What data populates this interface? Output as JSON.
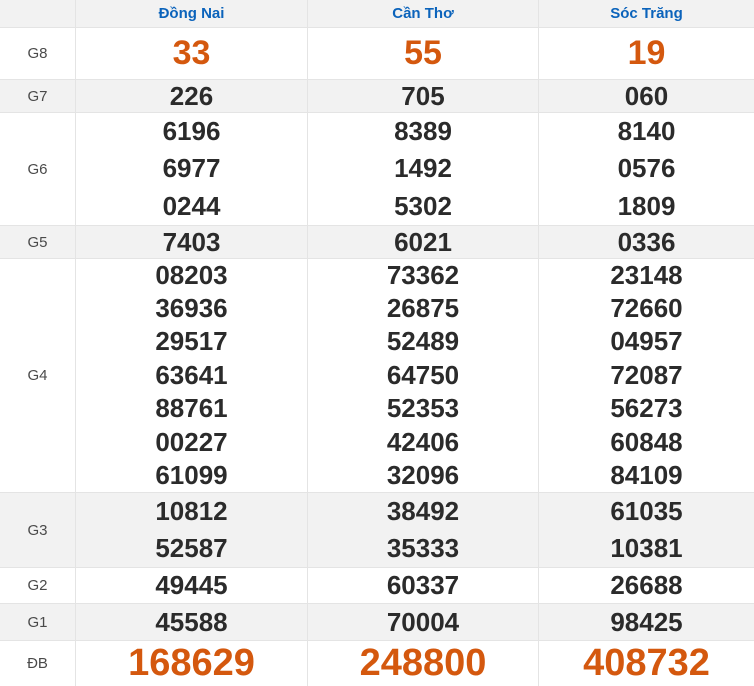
{
  "lottery": {
    "provinces": [
      "Đồng Nai",
      "Cần Thơ",
      "Sóc Trăng"
    ],
    "rows": [
      {
        "label": "G8",
        "values": [
          "33",
          "55",
          "19"
        ]
      },
      {
        "label": "G7",
        "values": [
          "226",
          "705",
          "060"
        ]
      },
      {
        "label": "G6",
        "values": [
          "6196\n6977\n0244",
          "8389\n1492\n5302",
          "8140\n0576\n1809"
        ]
      },
      {
        "label": "G5",
        "values": [
          "7403",
          "6021",
          "0336"
        ]
      },
      {
        "label": "G4",
        "values": [
          "08203\n36936\n29517\n63641\n88761\n00227\n61099",
          "73362\n26875\n52489\n64750\n52353\n42406\n32096",
          "23148\n72660\n04957\n72087\n56273\n60848\n84109"
        ]
      },
      {
        "label": "G3",
        "values": [
          "10812\n52587",
          "38492\n35333",
          "61035\n10381"
        ]
      },
      {
        "label": "G2",
        "values": [
          "49445",
          "60337",
          "26688"
        ]
      },
      {
        "label": "G1",
        "values": [
          "45588",
          "70004",
          "98425"
        ]
      },
      {
        "label": "ĐB",
        "values": [
          "168629",
          "248800",
          "408732"
        ]
      }
    ],
    "colors": {
      "accent_orange": "#d4580e",
      "header_blue": "#0b63bb",
      "digit_dark": "#2b2b2b",
      "label_gray": "#4a4a4a",
      "row_alt_bg": "#f2f2f2",
      "border": "#e4e4e4"
    }
  }
}
